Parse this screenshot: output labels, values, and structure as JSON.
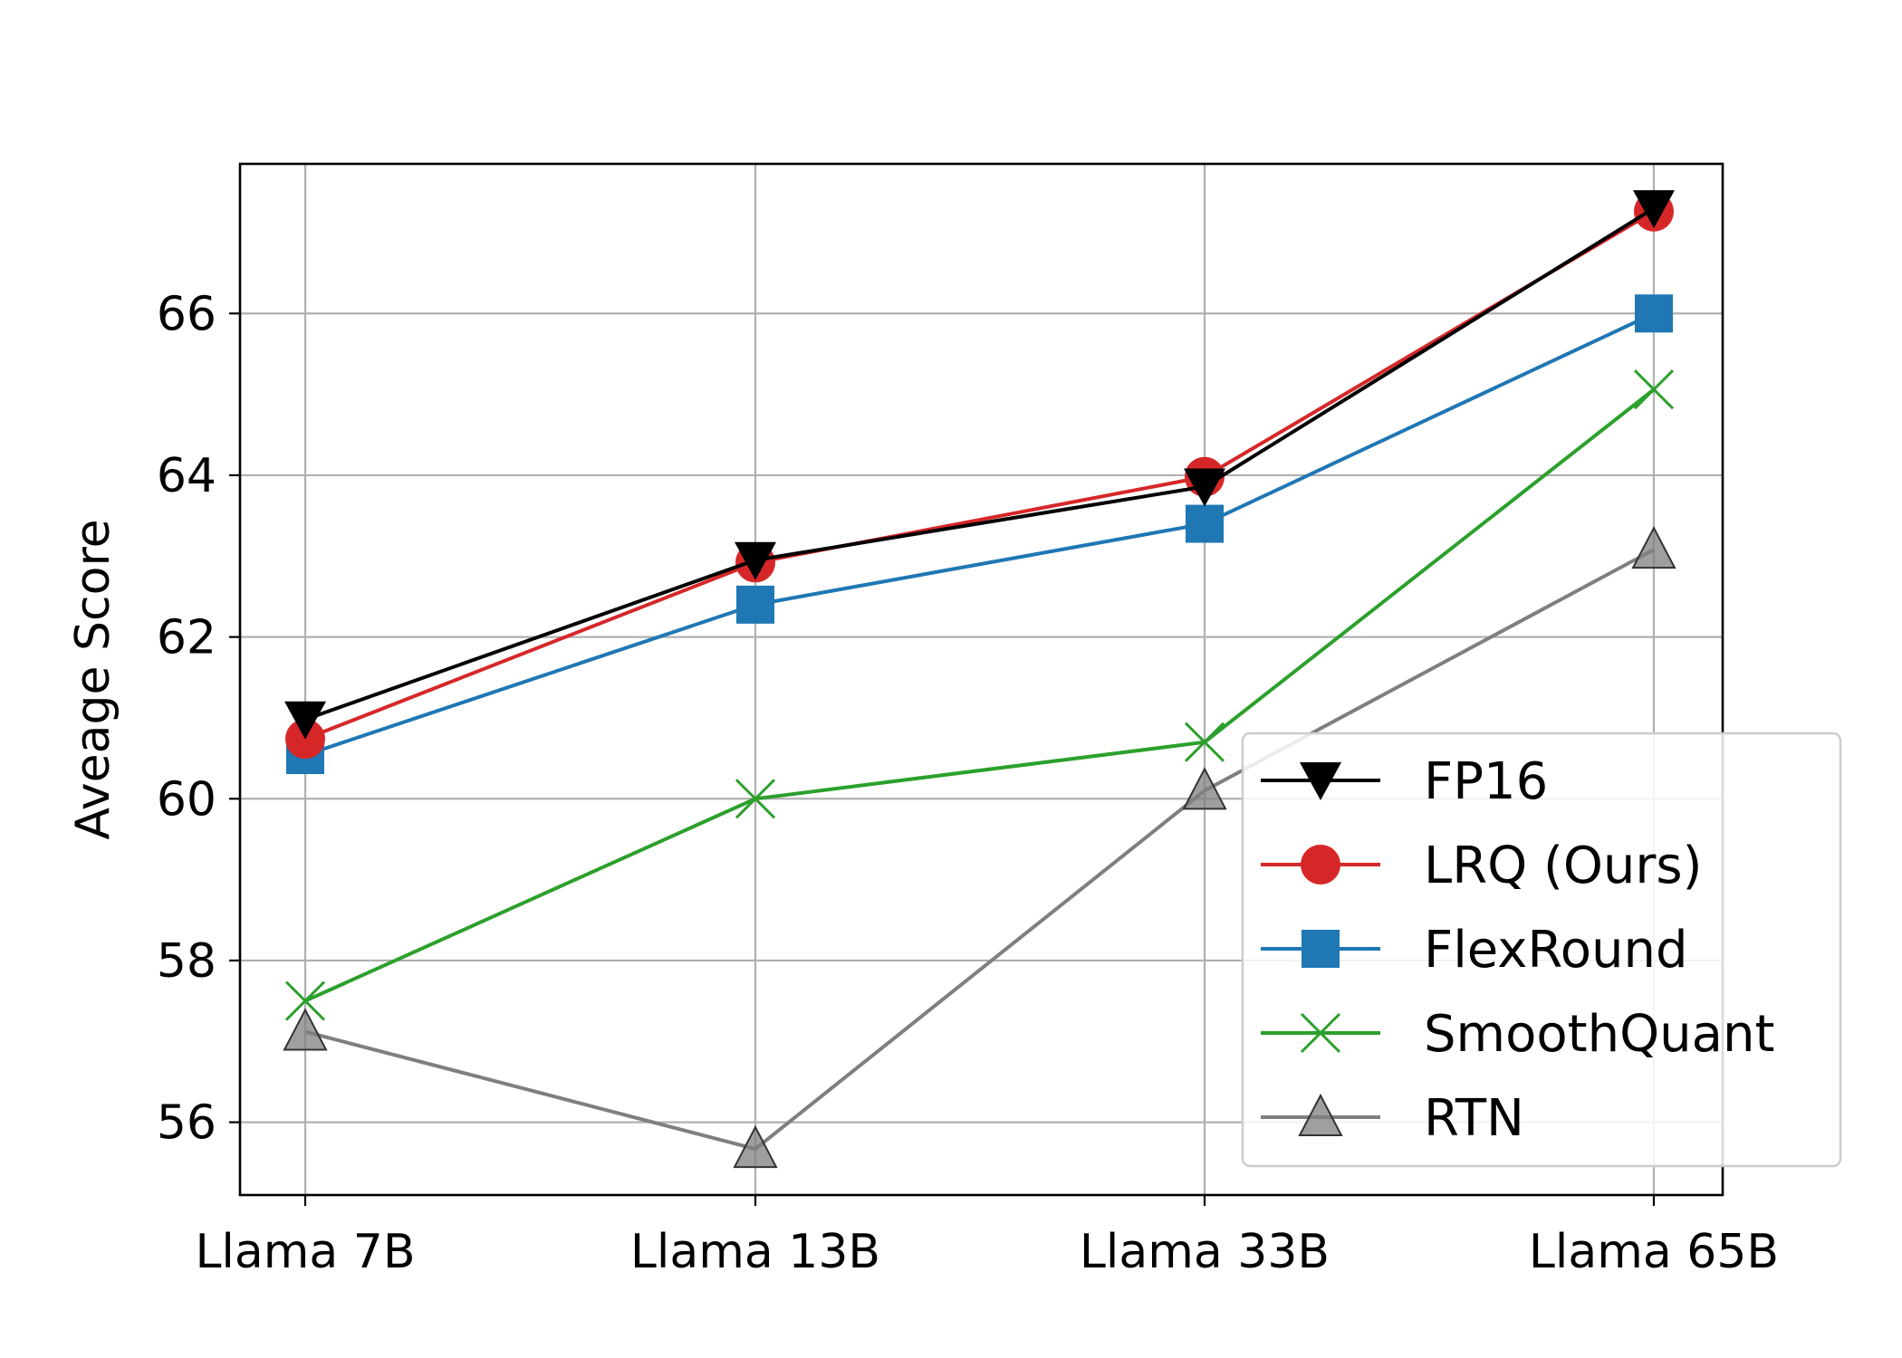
{
  "chart_data": {
    "type": "line",
    "title": "",
    "xlabel": "",
    "ylabel": "Aveage Score",
    "categories": [
      "Llama 7B",
      "Llama 13B",
      "Llama 33B",
      "Llama 65B"
    ],
    "ylim": [
      55.1,
      67.85
    ],
    "yticks": [
      56,
      58,
      60,
      62,
      64,
      66
    ],
    "grid": true,
    "legend_position": "lower-right",
    "series": [
      {
        "name": "FP16",
        "values": [
          60.98,
          62.95,
          63.86,
          67.3
        ],
        "color": "#000000",
        "marker": "triangle-down"
      },
      {
        "name": "LRQ (Ours)",
        "values": [
          60.74,
          62.92,
          63.98,
          67.26
        ],
        "color": "#d62728",
        "marker": "circle"
      },
      {
        "name": "FlexRound",
        "values": [
          60.54,
          62.4,
          63.4,
          66.0
        ],
        "color": "#1f77b4",
        "marker": "square"
      },
      {
        "name": "SmoothQuant",
        "values": [
          57.5,
          60.0,
          60.7,
          65.06
        ],
        "color": "#2ca02c",
        "marker": "x"
      },
      {
        "name": "RTN",
        "values": [
          57.12,
          55.67,
          60.1,
          63.08
        ],
        "color": "#7f7f7f",
        "marker": "triangle-up"
      }
    ]
  }
}
